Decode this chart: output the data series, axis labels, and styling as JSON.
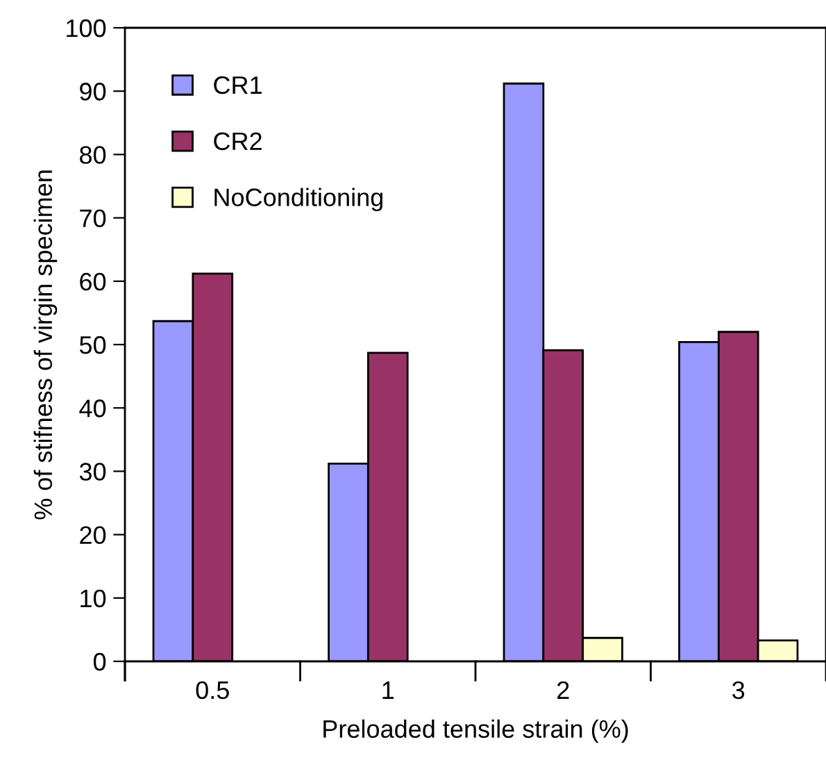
{
  "chart_data": {
    "type": "bar",
    "xlabel": "Preloaded tensile strain (%)",
    "ylabel": "% of stifness of virgin specimen",
    "categories": [
      "0.5",
      "1",
      "2",
      "3"
    ],
    "series": [
      {
        "name": "CR1",
        "color": "#9999ff",
        "values": [
          53.7,
          31.2,
          91.2,
          50.4
        ]
      },
      {
        "name": "CR2",
        "color": "#993366",
        "values": [
          61.2,
          48.7,
          49.1,
          52.0
        ]
      },
      {
        "name": "NoConditioning",
        "color": "#ffffcc",
        "values": [
          null,
          null,
          3.7,
          3.3
        ]
      }
    ],
    "ylim": [
      0,
      100
    ],
    "yticks": [
      0,
      10,
      20,
      30,
      40,
      50,
      60,
      70,
      80,
      90,
      100
    ],
    "grid": false,
    "legend": "top left"
  }
}
